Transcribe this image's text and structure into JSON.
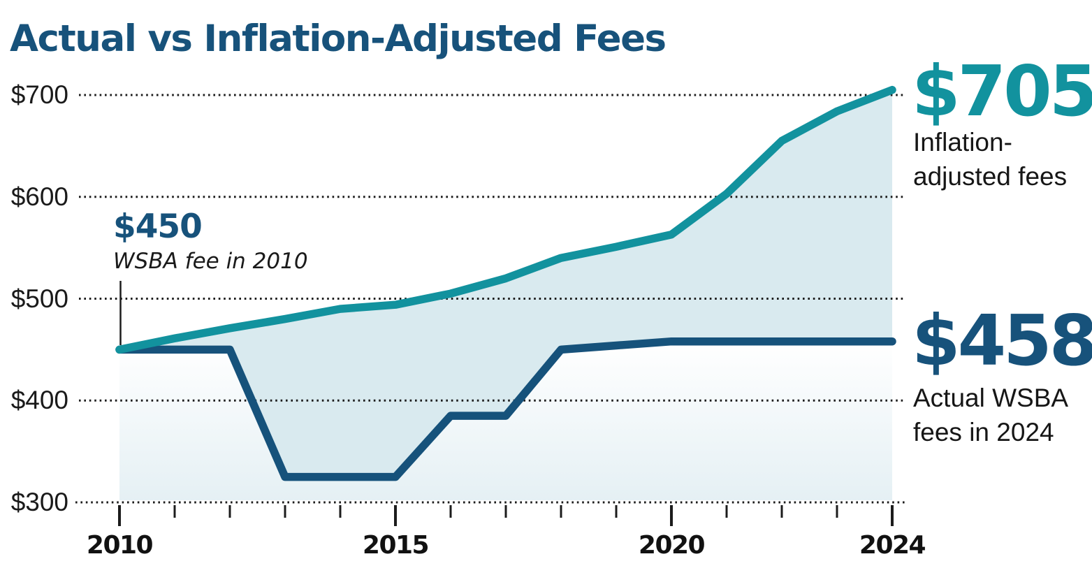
{
  "title": "Actual vs Inflation-Adjusted Fees",
  "annotations": {
    "start": {
      "value": "$450",
      "label": "WSBA fee in 2010"
    },
    "inflation": {
      "value": "$705",
      "label_line1": "Inflation-",
      "label_line2": "adjusted fees"
    },
    "actual": {
      "value": "$458",
      "label_line1": "Actual WSBA",
      "label_line2": "fees in 2024"
    }
  },
  "colors": {
    "teal": "#12929e",
    "navy": "#16527b",
    "title_navy": "#17527b",
    "between_area_fill": "#d9eaef",
    "below_fill_top": "#ffffff",
    "below_fill_bottom": "#e5f0f4",
    "grid": "#1c1c1c",
    "text_black": "#1a1a1a"
  },
  "chart_data": {
    "type": "area",
    "title": "Actual vs Inflation-Adjusted Fees",
    "x": [
      2010,
      2011,
      2012,
      2013,
      2014,
      2015,
      2016,
      2017,
      2018,
      2019,
      2020,
      2021,
      2022,
      2023,
      2024
    ],
    "series": [
      {
        "name": "Inflation-adjusted fees",
        "color": "#12929e",
        "values": [
          450,
          461,
          471,
          480,
          490,
          494,
          505,
          520,
          540,
          551,
          563,
          603,
          655,
          684,
          705
        ]
      },
      {
        "name": "Actual WSBA fees",
        "color": "#16527b",
        "values": [
          450,
          450,
          450,
          325,
          325,
          325,
          385,
          385,
          450,
          454,
          458,
          458,
          458,
          458,
          458
        ]
      }
    ],
    "ylim": [
      300,
      720
    ],
    "xlim": [
      2010,
      2024
    ],
    "grid": "horizontal dotted",
    "legend_position": "right-annotations",
    "y_ticks": [
      {
        "value": 700,
        "label": "$700"
      },
      {
        "value": 600,
        "label": "$600"
      },
      {
        "value": 500,
        "label": "$500"
      },
      {
        "value": 400,
        "label": "$400"
      },
      {
        "value": 300,
        "label": "$300"
      }
    ],
    "x_tick_labels": [
      "2010",
      "2015",
      "2020",
      "2024"
    ],
    "x_ticks_major": [
      2010,
      2015,
      2020,
      2024
    ],
    "key_points": [
      {
        "year": 2010,
        "value": 450,
        "note": "WSBA fee in 2010"
      },
      {
        "year": 2024,
        "value": 705,
        "note": "Inflation-adjusted fees"
      },
      {
        "year": 2024,
        "value": 458,
        "note": "Actual WSBA fees in 2024"
      }
    ]
  }
}
